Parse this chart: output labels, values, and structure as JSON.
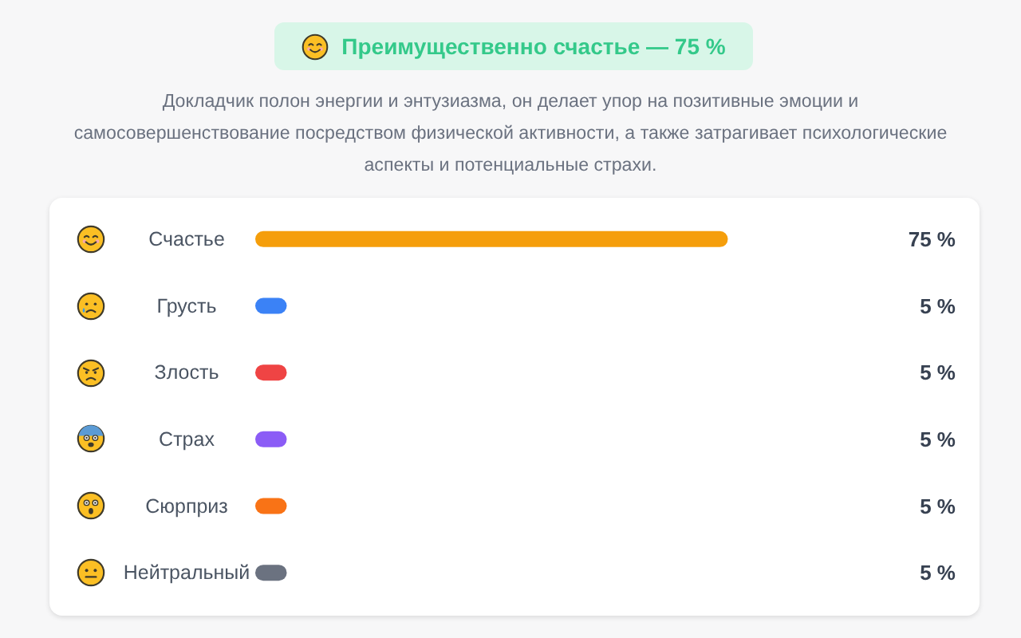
{
  "chart_data": {
    "type": "bar",
    "orientation": "horizontal",
    "title": "Преимущественно счастье — 75 %",
    "subtitle": "Докладчик полон энергии и энтузиазма, он делает упор на позитивные эмоции и самосовершенствование посредством физической активности, а также затрагивает психологические аспекты и потенциальные страхи.",
    "categories": [
      "Счастье",
      "Грусть",
      "Злость",
      "Страх",
      "Сюрприз",
      "Нейтральный"
    ],
    "values": [
      75,
      5,
      5,
      5,
      5,
      5
    ],
    "colors": [
      "#f59e0b",
      "#3b82f6",
      "#ef4444",
      "#8b5cf6",
      "#f97316",
      "#6b7280"
    ],
    "value_labels": [
      "75 %",
      "5 %",
      "5 %",
      "5 %",
      "5 %",
      "5 %"
    ],
    "tick_labels": "y"
  }
}
